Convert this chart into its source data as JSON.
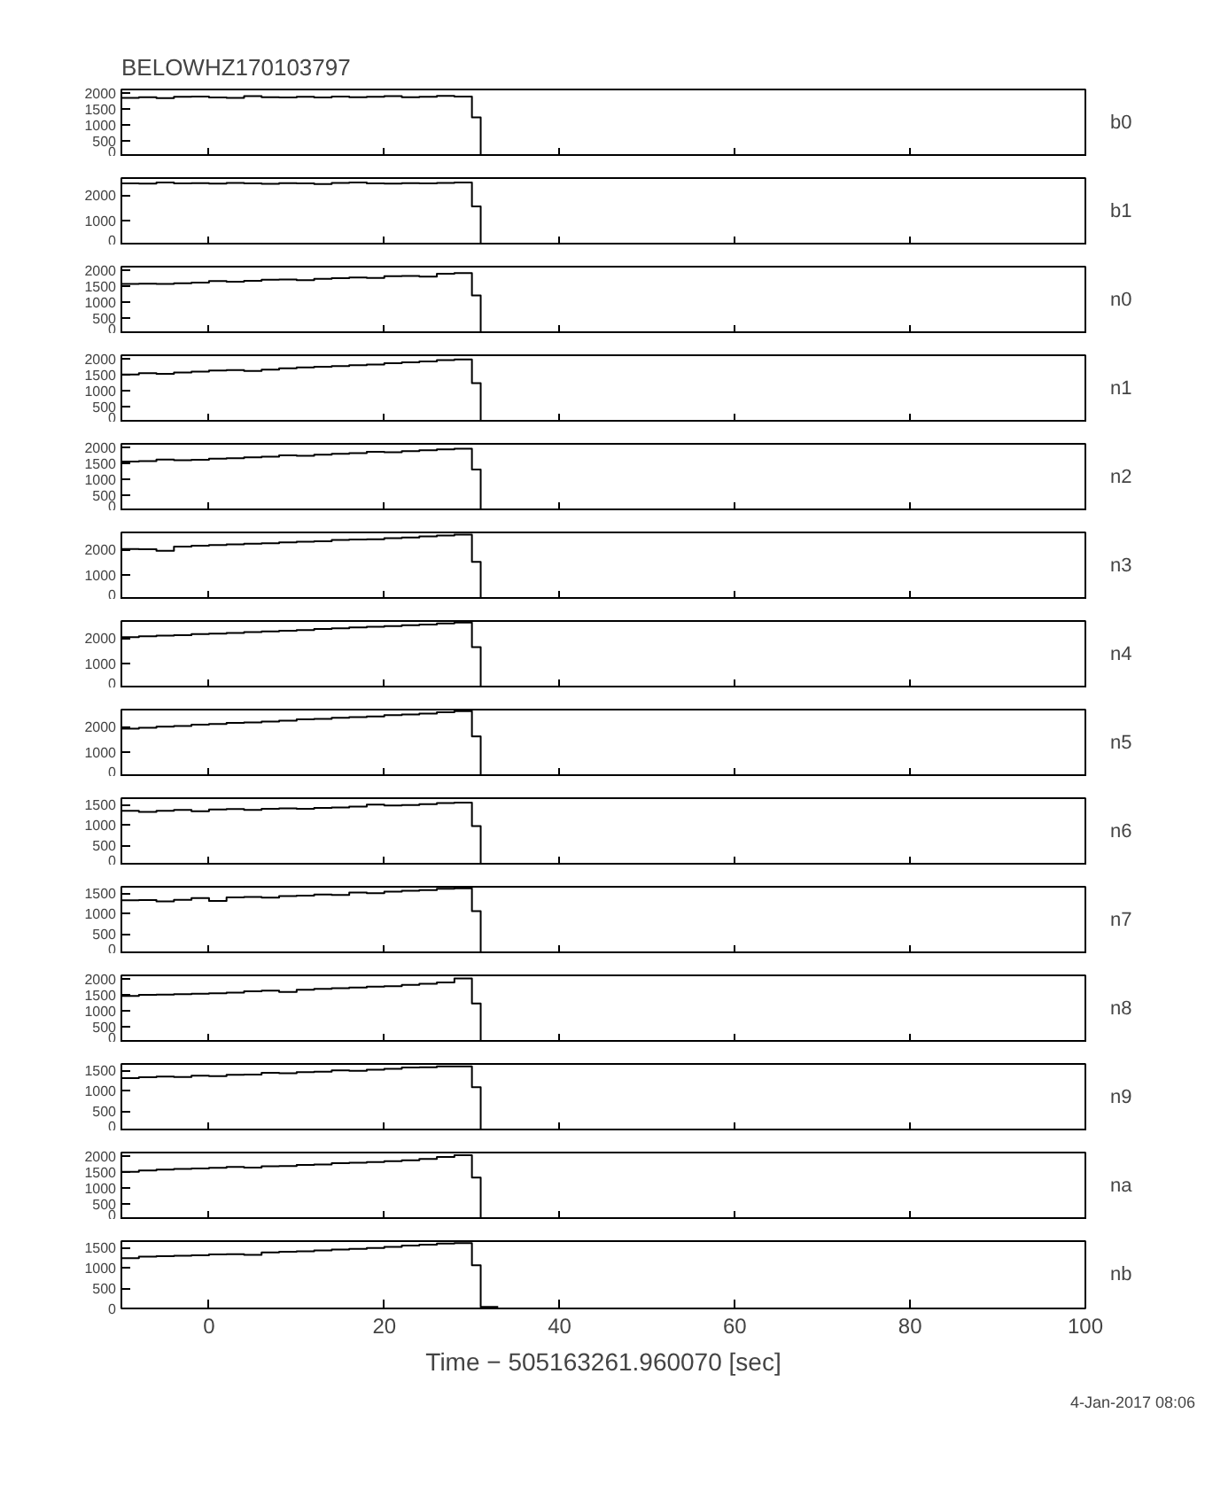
{
  "chart_data": [
    {
      "type": "step",
      "title": "BELOWHZ170103797",
      "y2label": "b0",
      "color": "#000000",
      "tick_labels": "y",
      "xlim": [
        -10,
        100
      ],
      "xticks": [
        0,
        20,
        40,
        60,
        80,
        100
      ],
      "ylim": [
        0,
        2100
      ],
      "yticks": [
        0,
        500,
        1000,
        1500,
        2000
      ],
      "x": [
        -10,
        -8,
        -6,
        -4,
        -2,
        0,
        2,
        4,
        6,
        8,
        10,
        12,
        14,
        16,
        18,
        20,
        22,
        24,
        26,
        28,
        30,
        31,
        33
      ],
      "values": [
        1840,
        1860,
        1830,
        1870,
        1880,
        1850,
        1840,
        1890,
        1860,
        1850,
        1870,
        1850,
        1880,
        1860,
        1870,
        1890,
        1860,
        1870,
        1900,
        1880,
        1230,
        40,
        40
      ]
    },
    {
      "type": "step",
      "y2label": "b1",
      "color": "#000000",
      "tick_labels": "y",
      "xlim": [
        -10,
        100
      ],
      "xticks": [
        0,
        20,
        40,
        60,
        80,
        100
      ],
      "ylim": [
        0,
        2680
      ],
      "yticks": [
        0,
        1000,
        2000
      ],
      "x": [
        -10,
        -8,
        -6,
        -4,
        -2,
        0,
        2,
        4,
        6,
        8,
        10,
        12,
        14,
        16,
        18,
        20,
        22,
        24,
        26,
        28,
        30,
        31,
        33
      ],
      "values": [
        2470,
        2460,
        2500,
        2470,
        2480,
        2460,
        2490,
        2470,
        2450,
        2480,
        2470,
        2440,
        2490,
        2500,
        2470,
        2460,
        2480,
        2470,
        2490,
        2500,
        1550,
        40,
        40
      ]
    },
    {
      "type": "step",
      "y2label": "n0",
      "color": "#000000",
      "tick_labels": "y",
      "xlim": [
        -10,
        100
      ],
      "xticks": [
        0,
        20,
        40,
        60,
        80,
        100
      ],
      "ylim": [
        0,
        2100
      ],
      "yticks": [
        0,
        500,
        1000,
        1500,
        2000
      ],
      "x": [
        -10,
        -8,
        -6,
        -4,
        -2,
        0,
        2,
        4,
        6,
        8,
        10,
        12,
        14,
        16,
        18,
        20,
        22,
        24,
        26,
        28,
        30,
        31,
        33
      ],
      "values": [
        1560,
        1570,
        1560,
        1580,
        1600,
        1650,
        1630,
        1660,
        1690,
        1700,
        1680,
        1720,
        1740,
        1760,
        1750,
        1800,
        1810,
        1790,
        1880,
        1900,
        1200,
        40,
        40
      ]
    },
    {
      "type": "step",
      "y2label": "n1",
      "color": "#000000",
      "tick_labels": "y",
      "xlim": [
        -10,
        100
      ],
      "xticks": [
        0,
        20,
        40,
        60,
        80,
        100
      ],
      "ylim": [
        0,
        2100
      ],
      "yticks": [
        0,
        500,
        1000,
        1500,
        2000
      ],
      "x": [
        -10,
        -8,
        -6,
        -4,
        -2,
        0,
        2,
        4,
        6,
        8,
        10,
        12,
        14,
        16,
        18,
        20,
        22,
        24,
        26,
        28,
        30,
        31,
        33
      ],
      "values": [
        1500,
        1540,
        1520,
        1560,
        1590,
        1620,
        1640,
        1610,
        1650,
        1690,
        1720,
        1740,
        1760,
        1790,
        1810,
        1850,
        1880,
        1910,
        1950,
        1970,
        1230,
        40,
        40
      ]
    },
    {
      "type": "step",
      "y2label": "n2",
      "color": "#000000",
      "tick_labels": "y",
      "xlim": [
        -10,
        100
      ],
      "xticks": [
        0,
        20,
        40,
        60,
        80,
        100
      ],
      "ylim": [
        0,
        2100
      ],
      "yticks": [
        0,
        500,
        1000,
        1500,
        2000
      ],
      "x": [
        -10,
        -8,
        -6,
        -4,
        -2,
        0,
        2,
        4,
        6,
        8,
        10,
        12,
        14,
        16,
        18,
        20,
        22,
        24,
        26,
        28,
        30,
        31,
        33
      ],
      "values": [
        1550,
        1560,
        1610,
        1590,
        1600,
        1640,
        1650,
        1680,
        1700,
        1740,
        1730,
        1760,
        1790,
        1810,
        1850,
        1840,
        1870,
        1900,
        1930,
        1950,
        1300,
        40,
        40
      ]
    },
    {
      "type": "step",
      "y2label": "n3",
      "color": "#000000",
      "tick_labels": "y",
      "xlim": [
        -10,
        100
      ],
      "xticks": [
        0,
        20,
        40,
        60,
        80,
        100
      ],
      "ylim": [
        0,
        2680
      ],
      "yticks": [
        0,
        1000,
        2000
      ],
      "x": [
        -10,
        -8,
        -6,
        -4,
        -2,
        0,
        2,
        4,
        6,
        8,
        10,
        12,
        14,
        16,
        18,
        20,
        22,
        24,
        26,
        28,
        30,
        31,
        33
      ],
      "values": [
        2020,
        2010,
        1950,
        2120,
        2150,
        2180,
        2200,
        2230,
        2250,
        2280,
        2310,
        2330,
        2380,
        2400,
        2410,
        2450,
        2480,
        2520,
        2560,
        2590,
        1510,
        40,
        40
      ]
    },
    {
      "type": "step",
      "y2label": "n4",
      "color": "#000000",
      "tick_labels": "y",
      "xlim": [
        -10,
        100
      ],
      "xticks": [
        0,
        20,
        40,
        60,
        80,
        100
      ],
      "ylim": [
        0,
        2680
      ],
      "yticks": [
        0,
        1000,
        2000
      ],
      "x": [
        -10,
        -8,
        -6,
        -4,
        -2,
        0,
        2,
        4,
        6,
        8,
        10,
        12,
        14,
        16,
        18,
        20,
        22,
        24,
        26,
        28,
        30,
        31,
        33
      ],
      "values": [
        2040,
        2070,
        2100,
        2120,
        2160,
        2180,
        2200,
        2240,
        2270,
        2290,
        2320,
        2360,
        2390,
        2420,
        2450,
        2480,
        2510,
        2540,
        2580,
        2620,
        1640,
        40,
        40
      ]
    },
    {
      "type": "step",
      "y2label": "n5",
      "color": "#000000",
      "tick_labels": "y",
      "xlim": [
        -10,
        100
      ],
      "xticks": [
        0,
        20,
        40,
        60,
        80,
        100
      ],
      "ylim": [
        0,
        2680
      ],
      "yticks": [
        0,
        1000,
        2000
      ],
      "x": [
        -10,
        -8,
        -6,
        -4,
        -2,
        0,
        2,
        4,
        6,
        8,
        10,
        12,
        14,
        16,
        18,
        20,
        22,
        24,
        26,
        28,
        30,
        31,
        33
      ],
      "values": [
        1920,
        1960,
        2000,
        2030,
        2080,
        2110,
        2150,
        2170,
        2200,
        2240,
        2290,
        2310,
        2350,
        2380,
        2410,
        2460,
        2490,
        2520,
        2570,
        2620,
        1610,
        40,
        40
      ]
    },
    {
      "type": "step",
      "y2label": "n6",
      "color": "#000000",
      "tick_labels": "y",
      "xlim": [
        -10,
        100
      ],
      "xticks": [
        0,
        20,
        40,
        60,
        80,
        100
      ],
      "ylim": [
        0,
        1660
      ],
      "yticks": [
        0,
        500,
        1000,
        1500
      ],
      "x": [
        -10,
        -8,
        -6,
        -4,
        -2,
        0,
        2,
        4,
        6,
        8,
        10,
        12,
        14,
        16,
        18,
        20,
        22,
        24,
        26,
        28,
        30,
        31,
        33
      ],
      "values": [
        1350,
        1320,
        1350,
        1370,
        1340,
        1380,
        1390,
        1370,
        1400,
        1410,
        1400,
        1420,
        1430,
        1450,
        1500,
        1480,
        1490,
        1510,
        1540,
        1550,
        970,
        40,
        40
      ]
    },
    {
      "type": "step",
      "y2label": "n7",
      "color": "#000000",
      "tick_labels": "y",
      "xlim": [
        -10,
        100
      ],
      "xticks": [
        0,
        20,
        40,
        60,
        80,
        100
      ],
      "ylim": [
        0,
        1660
      ],
      "yticks": [
        0,
        500,
        1000,
        1500
      ],
      "x": [
        -10,
        -8,
        -6,
        -4,
        -2,
        0,
        2,
        4,
        6,
        8,
        10,
        12,
        14,
        16,
        18,
        20,
        22,
        24,
        26,
        28,
        30,
        31,
        33
      ],
      "values": [
        1325,
        1330,
        1300,
        1340,
        1380,
        1310,
        1400,
        1410,
        1390,
        1430,
        1440,
        1470,
        1460,
        1520,
        1500,
        1540,
        1560,
        1580,
        1610,
        1620,
        1060,
        40,
        40
      ]
    },
    {
      "type": "step",
      "y2label": "n8",
      "color": "#000000",
      "tick_labels": "y",
      "xlim": [
        -10,
        100
      ],
      "xticks": [
        0,
        20,
        40,
        60,
        80,
        100
      ],
      "ylim": [
        0,
        2100
      ],
      "yticks": [
        0,
        500,
        1000,
        1500,
        2000
      ],
      "x": [
        -10,
        -8,
        -6,
        -4,
        -2,
        0,
        2,
        4,
        6,
        8,
        10,
        12,
        14,
        16,
        18,
        20,
        22,
        24,
        26,
        28,
        30,
        31,
        33
      ],
      "values": [
        1460,
        1490,
        1500,
        1510,
        1530,
        1540,
        1560,
        1600,
        1620,
        1580,
        1650,
        1680,
        1700,
        1720,
        1750,
        1760,
        1800,
        1840,
        1880,
        2000,
        1220,
        40,
        40
      ]
    },
    {
      "type": "step",
      "y2label": "n9",
      "color": "#000000",
      "tick_labels": "y",
      "xlim": [
        -10,
        100
      ],
      "xticks": [
        0,
        20,
        40,
        60,
        80,
        100
      ],
      "ylim": [
        0,
        1660
      ],
      "yticks": [
        0,
        500,
        1000,
        1500
      ],
      "x": [
        -10,
        -8,
        -6,
        -4,
        -2,
        0,
        2,
        4,
        6,
        8,
        10,
        12,
        14,
        16,
        18,
        20,
        22,
        24,
        26,
        28,
        30,
        31,
        33
      ],
      "values": [
        1310,
        1330,
        1350,
        1340,
        1370,
        1360,
        1390,
        1400,
        1440,
        1430,
        1460,
        1470,
        1500,
        1490,
        1520,
        1540,
        1570,
        1580,
        1600,
        1600,
        1085,
        40,
        40
      ]
    },
    {
      "type": "step",
      "y2label": "na",
      "color": "#000000",
      "tick_labels": "y",
      "xlim": [
        -10,
        100
      ],
      "xticks": [
        0,
        20,
        40,
        60,
        80,
        100
      ],
      "ylim": [
        0,
        2100
      ],
      "yticks": [
        0,
        500,
        1000,
        1500,
        2000
      ],
      "x": [
        -10,
        -8,
        -6,
        -4,
        -2,
        0,
        2,
        4,
        6,
        8,
        10,
        12,
        14,
        16,
        18,
        20,
        22,
        24,
        26,
        28,
        30,
        31,
        33
      ],
      "values": [
        1500,
        1540,
        1570,
        1590,
        1600,
        1620,
        1650,
        1630,
        1670,
        1680,
        1710,
        1730,
        1770,
        1780,
        1800,
        1830,
        1860,
        1900,
        1960,
        2020,
        1320,
        40,
        40
      ]
    },
    {
      "type": "step",
      "y2label": "nb",
      "color": "#000000",
      "xlabel": "Time − 505163261.960070 [sec]",
      "annotations": [
        "4-Jan-2017 08:06"
      ],
      "xlim": [
        -10,
        100
      ],
      "xticks": [
        0,
        20,
        40,
        60,
        80,
        100
      ],
      "ylim": [
        0,
        1660
      ],
      "yticks": [
        0,
        500,
        1000,
        1500
      ],
      "x": [
        -10,
        -8,
        -6,
        -4,
        -2,
        0,
        2,
        4,
        6,
        8,
        10,
        12,
        14,
        16,
        18,
        20,
        22,
        24,
        26,
        28,
        30,
        31,
        33
      ],
      "values": [
        1240,
        1280,
        1290,
        1300,
        1310,
        1330,
        1340,
        1320,
        1380,
        1400,
        1410,
        1430,
        1450,
        1470,
        1490,
        1520,
        1550,
        1570,
        1600,
        1610,
        1065,
        40,
        40
      ]
    }
  ]
}
